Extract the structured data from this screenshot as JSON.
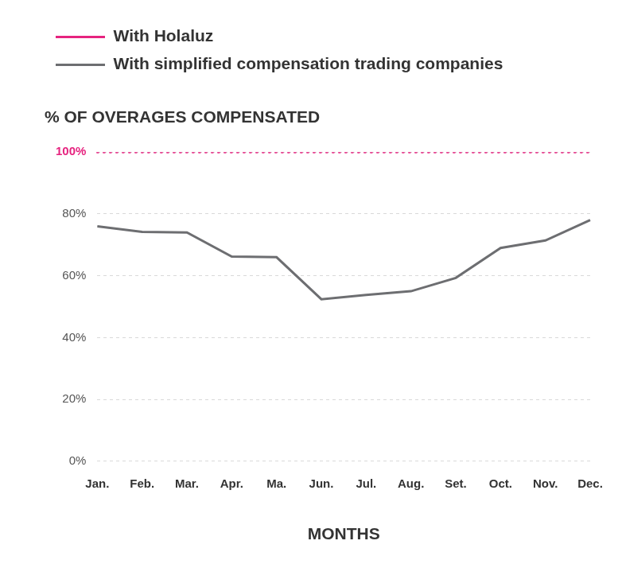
{
  "chart_data": {
    "type": "line",
    "y_label": "% OF OVERAGES COMPENSATED",
    "x_label": "MONTHS",
    "categories": [
      "Jan.",
      "Feb.",
      "Mar.",
      "Apr.",
      "Ma.",
      "Jun.",
      "Jul.",
      "Aug.",
      "Set.",
      "Oct.",
      "Nov.",
      "Dec."
    ],
    "series": [
      {
        "name": "With Holaluz",
        "color": "#e6237f",
        "line_style": "dotted",
        "values": [
          100,
          100,
          100,
          100,
          100,
          100,
          100,
          100,
          100,
          100,
          100,
          100
        ]
      },
      {
        "name": "With simplified compensation trading companies",
        "color": "#6d6e71",
        "line_style": "solid",
        "values": [
          76,
          74.2,
          74,
          66.2,
          66,
          52.4,
          53.8,
          55,
          59.3,
          69,
          71.4,
          78
        ]
      }
    ],
    "ylim": [
      0,
      100
    ],
    "yticks": [
      {
        "value": 0,
        "label": "0%"
      },
      {
        "value": 20,
        "label": "20%"
      },
      {
        "value": 40,
        "label": "40%"
      },
      {
        "value": 60,
        "label": "60%"
      },
      {
        "value": 80,
        "label": "80%"
      },
      {
        "value": 100,
        "label": "100%"
      }
    ],
    "grid": true,
    "legend": "top-left"
  }
}
